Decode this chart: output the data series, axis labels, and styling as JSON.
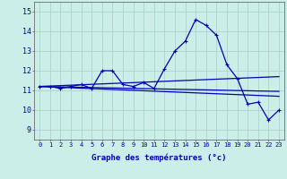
{
  "xlabel": "Graphe des températures (°c)",
  "bg_color": "#cceee8",
  "grid_color": "#aad4cc",
  "line_color": "#0000bb",
  "x_ticks": [
    0,
    1,
    2,
    3,
    4,
    5,
    6,
    7,
    8,
    9,
    10,
    11,
    12,
    13,
    14,
    15,
    16,
    17,
    18,
    19,
    20,
    21,
    22,
    23
  ],
  "ylim": [
    8.5,
    15.5
  ],
  "yticks": [
    9,
    10,
    11,
    12,
    13,
    14,
    15
  ],
  "series": {
    "main": {
      "x": [
        0,
        1,
        2,
        3,
        4,
        5,
        6,
        7,
        8,
        9,
        10,
        11,
        12,
        13,
        14,
        15,
        16,
        17,
        18,
        19,
        20,
        21,
        22,
        23
      ],
      "y": [
        11.2,
        11.2,
        11.1,
        11.2,
        11.3,
        11.1,
        12.0,
        12.0,
        11.3,
        11.2,
        11.4,
        11.1,
        12.1,
        13.0,
        13.5,
        14.6,
        14.3,
        13.8,
        12.3,
        11.6,
        10.3,
        10.4,
        9.5,
        10.0
      ]
    },
    "trend1": {
      "x": [
        0,
        23
      ],
      "y": [
        11.2,
        11.7
      ]
    },
    "trend2": {
      "x": [
        0,
        23
      ],
      "y": [
        11.2,
        10.95
      ]
    },
    "trend3": {
      "x": [
        0,
        23
      ],
      "y": [
        11.2,
        10.7
      ]
    }
  }
}
